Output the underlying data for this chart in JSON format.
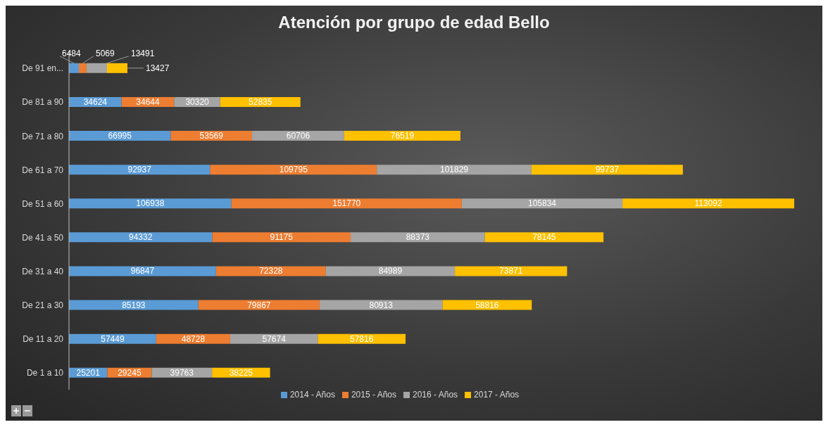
{
  "chart_data": {
    "type": "bar",
    "orientation": "horizontal",
    "stacked": true,
    "title": "Atención por grupo de edad Bello",
    "categories": [
      "De 91 en...",
      "De 81 a 90",
      "De 71 a 80",
      "De 61 a 70",
      "De 51 a 60",
      "De 41 a 50",
      "De 31 a 40",
      "De 21 a 30",
      "De 11 a 20",
      "De 1 a 10"
    ],
    "series": [
      {
        "name": "2014 - Años",
        "color": "#5b9bd5",
        "values": [
          6484,
          34624,
          66995,
          92937,
          106938,
          94332,
          96847,
          85193,
          57449,
          25201
        ]
      },
      {
        "name": "2015 - Años",
        "color": "#ed7d31",
        "values": [
          5069,
          34644,
          53569,
          109795,
          151770,
          91175,
          72328,
          79867,
          48728,
          29245
        ]
      },
      {
        "name": "2016 - Años",
        "color": "#a5a5a5",
        "values": [
          13491,
          30320,
          60706,
          101829,
          105834,
          88373,
          84989,
          80913,
          57674,
          39763
        ]
      },
      {
        "name": "2017 - Años",
        "color": "#ffc000",
        "values": [
          13427,
          52835,
          76519,
          99737,
          113092,
          78145,
          73871,
          58816,
          57816,
          38225
        ]
      }
    ],
    "data_labels": true,
    "legend": "bottom",
    "grid": false
  }
}
